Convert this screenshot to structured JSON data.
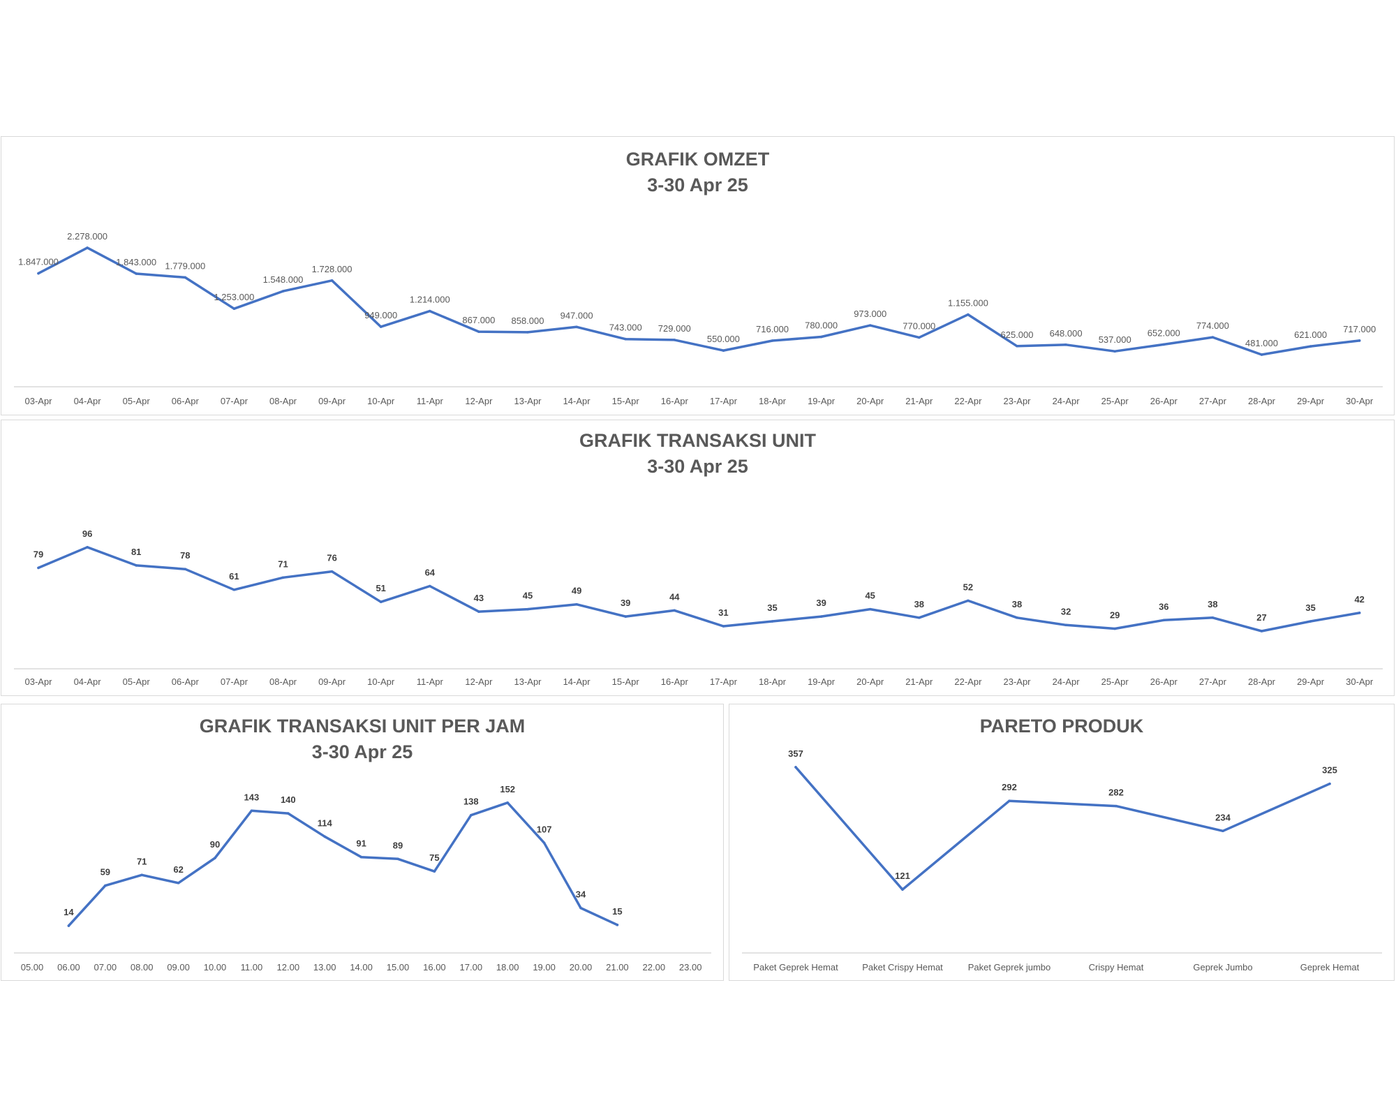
{
  "chart_data": [
    {
      "type": "line",
      "title": "GRAFIK OMZET",
      "subtitle": "3-30 Apr 25",
      "categories": [
        "03-Apr",
        "04-Apr",
        "05-Apr",
        "06-Apr",
        "07-Apr",
        "08-Apr",
        "09-Apr",
        "10-Apr",
        "11-Apr",
        "12-Apr",
        "13-Apr",
        "14-Apr",
        "15-Apr",
        "16-Apr",
        "17-Apr",
        "18-Apr",
        "19-Apr",
        "20-Apr",
        "21-Apr",
        "22-Apr",
        "23-Apr",
        "24-Apr",
        "25-Apr",
        "26-Apr",
        "27-Apr",
        "28-Apr",
        "29-Apr",
        "30-Apr"
      ],
      "values": [
        1847000,
        2278000,
        1843000,
        1779000,
        1253000,
        1548000,
        1728000,
        949000,
        1214000,
        867000,
        858000,
        947000,
        743000,
        729000,
        550000,
        716000,
        780000,
        973000,
        770000,
        1155000,
        625000,
        648000,
        537000,
        652000,
        774000,
        481000,
        621000,
        717000
      ],
      "labels": [
        "1.847.000",
        "2.278.000",
        "1.843.000",
        "1.779.000",
        "1.253.000",
        "1.548.000",
        "1.728.000",
        "949.000",
        "1.214.000",
        "867.000",
        "858.000",
        "947.000",
        "743.000",
        "729.000",
        "550.000",
        "716.000",
        "780.000",
        "973.000",
        "770.000",
        "1.155.000",
        "625.000",
        "648.000",
        "537.000",
        "652.000",
        "774.000",
        "481.000",
        "621.000",
        "717.000"
      ],
      "ylim": [
        0,
        2500000
      ],
      "grid": false,
      "line_color": "#4472C4"
    },
    {
      "type": "line",
      "title": "GRAFIK TRANSAKSI UNIT",
      "subtitle": "3-30 Apr 25",
      "categories": [
        "03-Apr",
        "04-Apr",
        "05-Apr",
        "06-Apr",
        "07-Apr",
        "08-Apr",
        "09-Apr",
        "10-Apr",
        "11-Apr",
        "12-Apr",
        "13-Apr",
        "14-Apr",
        "15-Apr",
        "16-Apr",
        "17-Apr",
        "18-Apr",
        "19-Apr",
        "20-Apr",
        "21-Apr",
        "22-Apr",
        "23-Apr",
        "24-Apr",
        "25-Apr",
        "26-Apr",
        "27-Apr",
        "28-Apr",
        "29-Apr",
        "30-Apr"
      ],
      "values": [
        79,
        96,
        81,
        78,
        61,
        71,
        76,
        51,
        64,
        43,
        45,
        49,
        39,
        44,
        31,
        35,
        39,
        45,
        38,
        52,
        38,
        32,
        29,
        36,
        38,
        27,
        35,
        42
      ],
      "labels": [
        "79",
        "96",
        "81",
        "78",
        "61",
        "71",
        "76",
        "51",
        "64",
        "43",
        "45",
        "49",
        "39",
        "44",
        "31",
        "35",
        "39",
        "45",
        "38",
        "52",
        "38",
        "32",
        "29",
        "36",
        "38",
        "27",
        "35",
        "42"
      ],
      "ylim": [
        0,
        120
      ],
      "grid": false,
      "line_color": "#4472C4"
    },
    {
      "type": "line",
      "title": "GRAFIK TRANSAKSI UNIT PER JAM",
      "subtitle": "3-30 Apr 25",
      "categories": [
        "05.00",
        "06.00",
        "07.00",
        "08.00",
        "09.00",
        "10.00",
        "11.00",
        "12.00",
        "13.00",
        "14.00",
        "15.00",
        "16.00",
        "17.00",
        "18.00",
        "19.00",
        "20.00",
        "21.00",
        "22.00",
        "23.00"
      ],
      "values": [
        null,
        14,
        59,
        71,
        62,
        90,
        143,
        140,
        114,
        91,
        89,
        75,
        138,
        152,
        107,
        34,
        15,
        null,
        null
      ],
      "labels": [
        "",
        "14",
        "59",
        "71",
        "62",
        "90",
        "143",
        "140",
        "114",
        "91",
        "89",
        "75",
        "138",
        "152",
        "107",
        "34",
        "15",
        "",
        ""
      ],
      "ylim": [
        0,
        180
      ],
      "grid": false,
      "line_color": "#4472C4"
    },
    {
      "type": "line",
      "title": "PARETO PRODUK",
      "subtitle": "",
      "categories": [
        "Paket Geprek Hemat",
        "Paket Crispy Hemat",
        "Paket Geprek jumbo",
        "Crispy Hemat",
        "Geprek Jumbo",
        "Geprek Hemat"
      ],
      "values": [
        357,
        121,
        292,
        282,
        234,
        325
      ],
      "labels": [
        "357",
        "121",
        "292",
        "282",
        "234",
        "325"
      ],
      "ylim": [
        0,
        400
      ],
      "grid": false,
      "line_color": "#4472C4"
    }
  ]
}
